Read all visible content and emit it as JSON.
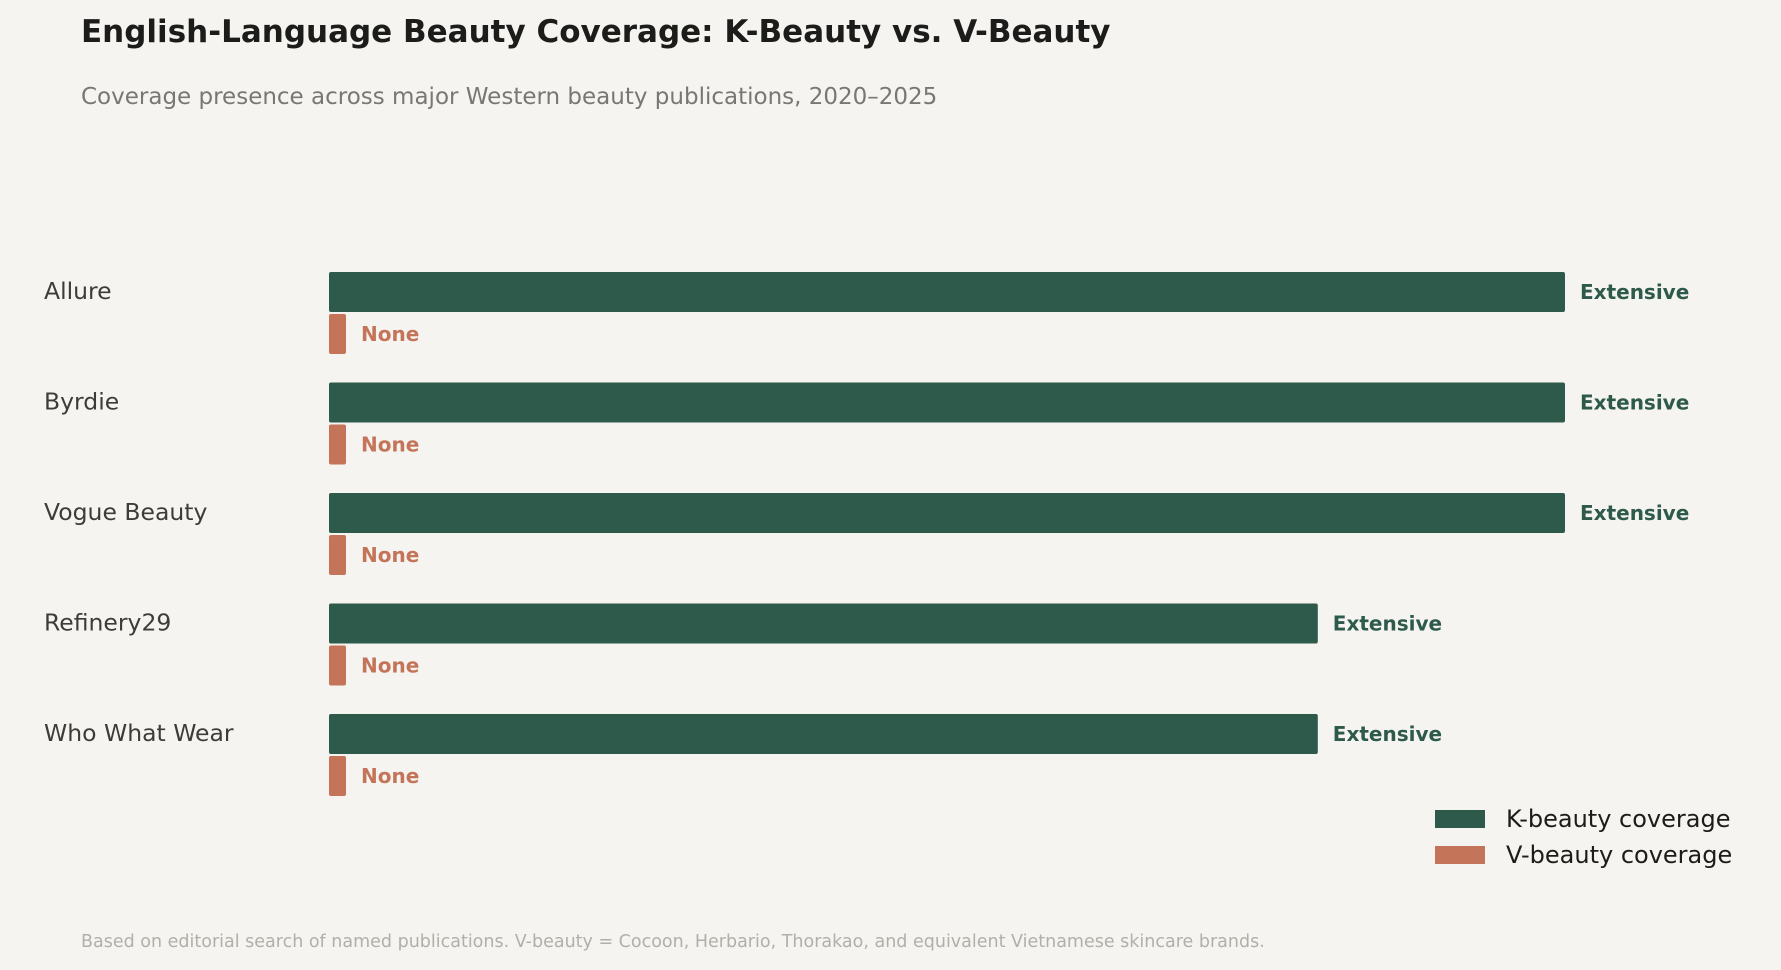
{
  "title": "English-Language Beauty Coverage: K-Beauty vs. V-Beauty",
  "subtitle": "Coverage presence across major Western beauty publications, 2020–2025",
  "footnote": "Based on editorial search of named publications. V-beauty = Cocoon, Herbario, Thorakao, and equivalent Vietnamese skincare brands.",
  "chart_data": {
    "type": "bar",
    "orientation": "horizontal",
    "categories": [
      "Allure",
      "Byrdie",
      "Vogue Beauty",
      "Refinery29",
      "Who What Wear"
    ],
    "series": [
      {
        "name": "K-beauty coverage",
        "color": "#2e5a4b",
        "values": [
          5,
          5,
          5,
          4,
          4
        ],
        "labels": [
          "Extensive",
          "Extensive",
          "Extensive",
          "Extensive",
          "Extensive"
        ]
      },
      {
        "name": "V-beauty coverage",
        "color": "#c47559",
        "values": [
          0,
          0,
          0,
          0,
          0
        ],
        "labels": [
          "None",
          "None",
          "None",
          "None",
          "None"
        ]
      }
    ],
    "xlim": [
      0,
      5
    ],
    "grid": false,
    "legend": "bottom-right"
  }
}
